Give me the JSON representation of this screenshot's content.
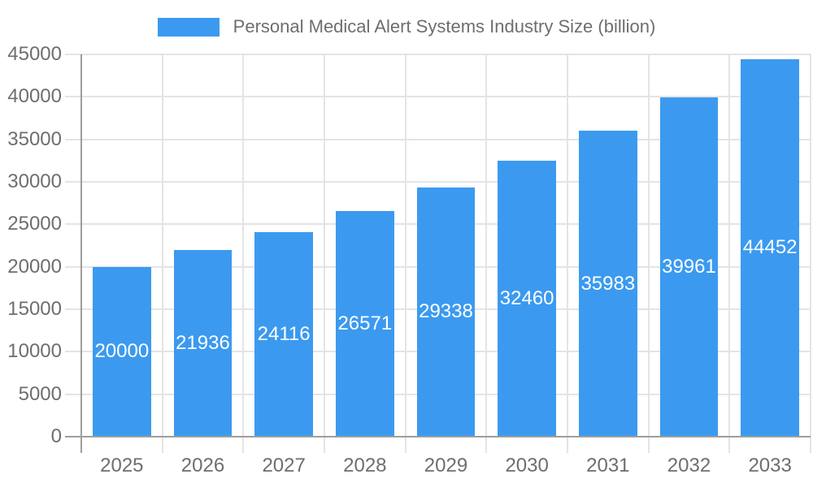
{
  "chart_data": {
    "type": "bar",
    "title": "Personal Medical Alert Systems Industry Size (billion)",
    "categories": [
      "2025",
      "2026",
      "2027",
      "2028",
      "2029",
      "2030",
      "2031",
      "2032",
      "2033"
    ],
    "values": [
      20000,
      21936,
      24116,
      26571,
      29338,
      32460,
      35983,
      39961,
      44452
    ],
    "xlabel": "",
    "ylabel": "",
    "ylim": [
      0,
      45000
    ],
    "ytick_step": 5000,
    "grid": true,
    "legend_position": "top",
    "data_labels_position": "inside-center",
    "colors": {
      "bar": "#3B9AEF",
      "gridline": "#E4E4E4",
      "axis_line": "#9E9E9E",
      "tick_label": "#6E6E6E",
      "legend_text": "#6E6E6E",
      "data_label": "#FFFFFF",
      "background": "#FFFFFF"
    }
  }
}
